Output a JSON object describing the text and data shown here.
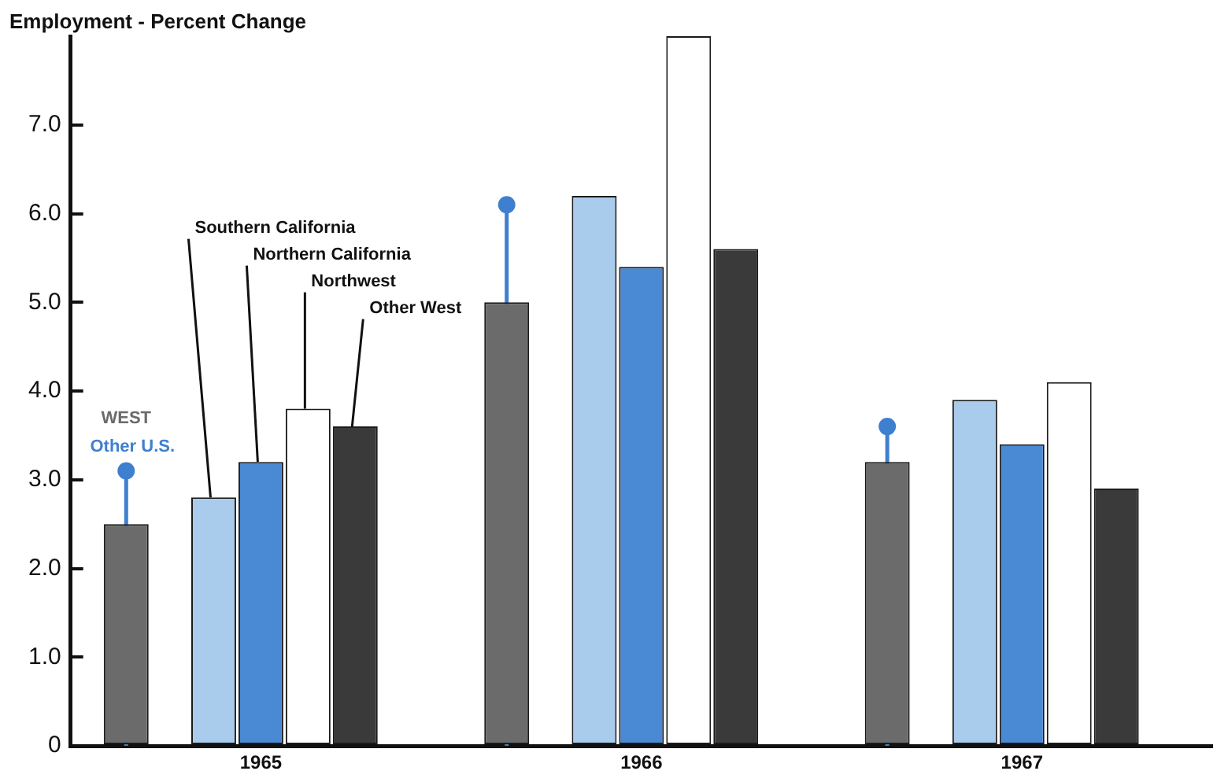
{
  "chart_data": {
    "type": "bar",
    "ylabel": "Employment - Percent Change",
    "categories": [
      "1965",
      "1966",
      "1967"
    ],
    "series": [
      {
        "name": "WEST",
        "color": "#6b6b6b",
        "values": [
          2.5,
          5.0,
          3.2
        ]
      },
      {
        "name": "Southern California",
        "color": "#a9cbec",
        "values": [
          2.8,
          6.2,
          3.9
        ]
      },
      {
        "name": "Northern California",
        "color": "#4a8ad4",
        "values": [
          3.2,
          5.4,
          3.4
        ]
      },
      {
        "name": "Northwest",
        "color": "#ffffff",
        "values": [
          3.8,
          8.0,
          4.1
        ]
      },
      {
        "name": "Other West",
        "color": "#3a3a3a",
        "values": [
          3.6,
          5.6,
          2.9
        ]
      },
      {
        "name": "Other U.S.",
        "type": "lollipop",
        "color": "#3f7fd0",
        "values": [
          3.1,
          6.1,
          3.6
        ]
      }
    ],
    "ylim": [
      0,
      8
    ],
    "yticks": [
      0,
      {
        "value": 1,
        "label": "1.0"
      },
      {
        "value": 2,
        "label": "2.0"
      },
      {
        "value": 3,
        "label": "3.0"
      },
      {
        "value": 4,
        "label": "4.0"
      },
      {
        "value": 5,
        "label": "5.0"
      },
      {
        "value": 6,
        "label": "6.0"
      },
      {
        "value": 7,
        "label": "7.0"
      }
    ],
    "grid": false,
    "legend": false,
    "marker": "circle"
  }
}
